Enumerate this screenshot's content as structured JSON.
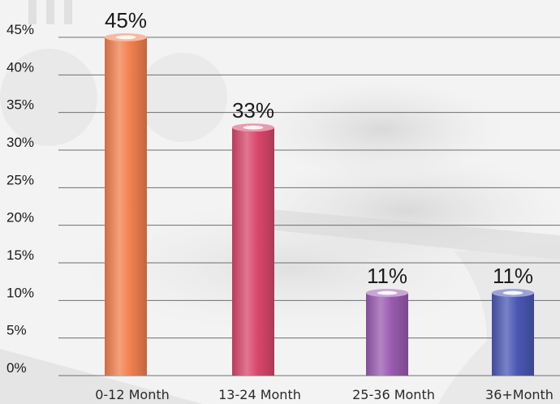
{
  "chart_data": {
    "type": "bar",
    "categories": [
      "0-12 Month",
      "13-24 Month",
      "25-36 Month",
      "36+Month"
    ],
    "values": [
      45,
      33,
      11,
      11
    ],
    "value_labels": [
      "45%",
      "33%",
      "11%",
      "11%"
    ],
    "ylim": [
      0,
      45
    ],
    "yticks": [
      "0%",
      "5%",
      "10%",
      "15%",
      "20%",
      "25%",
      "30%",
      "35%",
      "40%",
      "45%"
    ],
    "grid": true,
    "title": "",
    "xlabel": "",
    "ylabel": "",
    "bar_colors": [
      "#f2804f",
      "#d9476b",
      "#9a5bb0",
      "#4a58b5"
    ]
  }
}
